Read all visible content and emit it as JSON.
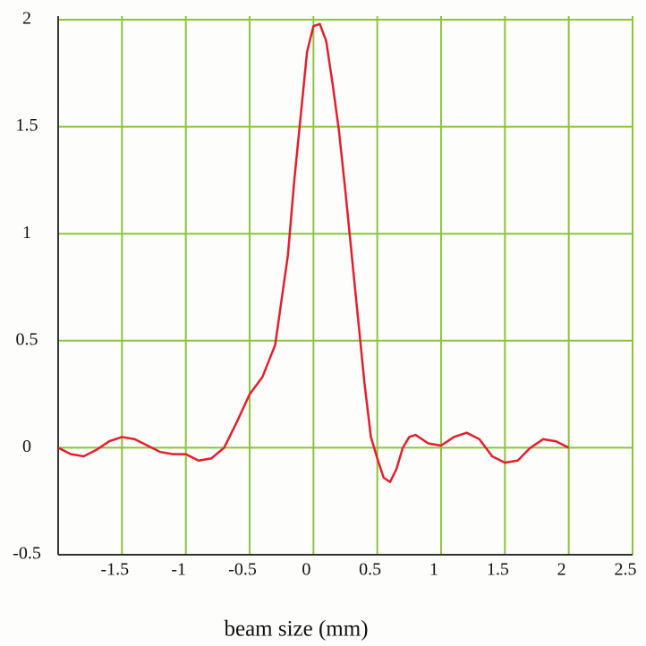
{
  "chart_data": {
    "type": "line",
    "x_label": "beam size (mm)",
    "xlim": [
      -2,
      2.5
    ],
    "ylim": [
      -0.5,
      2
    ],
    "xticks": [
      -1.5,
      -1,
      -0.5,
      0,
      0.5,
      1,
      1.5,
      2,
      2.5
    ],
    "yticks": [
      -0.5,
      0,
      0.5,
      1,
      1.5,
      2
    ],
    "grid": true,
    "grid_color": "#8cc43c",
    "series": [
      {
        "color": "#e0202c",
        "x": [
          -2,
          -1.9,
          -1.8,
          -1.7,
          -1.6,
          -1.5,
          -1.4,
          -1.3,
          -1.2,
          -1.1,
          -1.0,
          -0.9,
          -0.8,
          -0.7,
          -0.6,
          -0.5,
          -0.4,
          -0.3,
          -0.2,
          -0.15,
          -0.1,
          -0.05,
          0.0,
          0.05,
          0.1,
          0.15,
          0.2,
          0.25,
          0.3,
          0.35,
          0.4,
          0.45,
          0.5,
          0.55,
          0.6,
          0.65,
          0.7,
          0.75,
          0.8,
          0.9,
          1.0,
          1.1,
          1.2,
          1.3,
          1.4,
          1.5,
          1.6,
          1.7,
          1.8,
          1.9,
          2.0
        ],
        "values": [
          0.0,
          -0.03,
          -0.04,
          -0.01,
          0.03,
          0.05,
          0.04,
          0.01,
          -0.02,
          -0.03,
          -0.03,
          -0.06,
          -0.05,
          0.0,
          0.12,
          0.25,
          0.33,
          0.48,
          0.9,
          1.25,
          1.55,
          1.85,
          1.97,
          1.98,
          1.9,
          1.7,
          1.48,
          1.2,
          0.9,
          0.6,
          0.3,
          0.05,
          -0.05,
          -0.14,
          -0.16,
          -0.1,
          0.0,
          0.05,
          0.06,
          0.02,
          0.01,
          0.05,
          0.07,
          0.04,
          -0.04,
          -0.07,
          -0.06,
          0.0,
          0.04,
          0.03,
          0.0
        ]
      }
    ]
  }
}
